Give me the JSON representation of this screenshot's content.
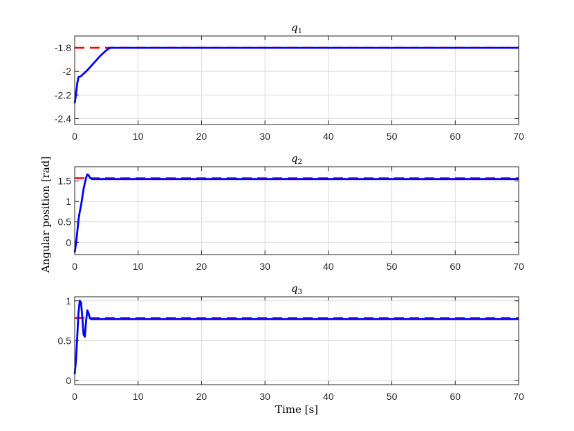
{
  "figure": {
    "ylabel": "Angular position [rad]",
    "xlabel": "Time [s]"
  },
  "chart_data": [
    {
      "type": "line",
      "title_main": "q",
      "title_sub": "1",
      "xlim": [
        0,
        70
      ],
      "ylim": [
        -2.45,
        -1.7
      ],
      "xticks": [
        "0",
        "10",
        "20",
        "30",
        "40",
        "50",
        "60",
        "70"
      ],
      "yticks": [
        {
          "value": -1.8,
          "label": "-1.8"
        },
        {
          "value": -2.0,
          "label": "-2"
        },
        {
          "value": -2.2,
          "label": "-2.2"
        },
        {
          "value": -2.4,
          "label": "-2.4"
        }
      ],
      "grid": true,
      "series": [
        {
          "style": "dashed",
          "color": "#ff0000",
          "x": [
            0,
            70
          ],
          "y": [
            -1.8,
            -1.8
          ]
        },
        {
          "style": "solid",
          "color": "#0000ff",
          "x": [
            0,
            0.2,
            0.4,
            0.6,
            1,
            2,
            3,
            4,
            5,
            5.6,
            10,
            20,
            30,
            40,
            50,
            60,
            70
          ],
          "y": [
            -2.27,
            -2.2,
            -2.1,
            -2.05,
            -2.04,
            -1.99,
            -1.93,
            -1.87,
            -1.82,
            -1.8,
            -1.8,
            -1.8,
            -1.8,
            -1.8,
            -1.8,
            -1.8,
            -1.8
          ]
        }
      ]
    },
    {
      "type": "line",
      "title_main": "q",
      "title_sub": "2",
      "xlim": [
        0,
        70
      ],
      "ylim": [
        -0.3,
        1.85
      ],
      "xticks": [
        "0",
        "10",
        "20",
        "30",
        "40",
        "50",
        "60",
        "70"
      ],
      "yticks": [
        {
          "value": 1.5,
          "label": "1.5"
        },
        {
          "value": 1.0,
          "label": "1"
        },
        {
          "value": 0.5,
          "label": "0.5"
        },
        {
          "value": 0.0,
          "label": "0"
        }
      ],
      "grid": true,
      "series": [
        {
          "style": "dashed",
          "color": "#ff0000",
          "x": [
            0,
            70
          ],
          "y": [
            1.57,
            1.57
          ]
        },
        {
          "style": "solid",
          "color": "#0000ff",
          "x": [
            0,
            0.2,
            0.4,
            0.6,
            0.8,
            1.0,
            1.2,
            1.4,
            1.6,
            1.8,
            2.0,
            2.2,
            2.4,
            2.7,
            3.0,
            10,
            20,
            30,
            40,
            50,
            60,
            70
          ],
          "y": [
            -0.25,
            -0.05,
            0.25,
            0.55,
            0.75,
            0.9,
            1.1,
            1.3,
            1.45,
            1.58,
            1.66,
            1.64,
            1.58,
            1.55,
            1.55,
            1.55,
            1.55,
            1.55,
            1.55,
            1.55,
            1.55,
            1.55
          ]
        }
      ]
    },
    {
      "type": "line",
      "title_main": "q",
      "title_sub": "3",
      "xlim": [
        0,
        70
      ],
      "ylim": [
        -0.05,
        1.05
      ],
      "xticks": [
        "0",
        "10",
        "20",
        "30",
        "40",
        "50",
        "60",
        "70"
      ],
      "yticks": [
        {
          "value": 1.0,
          "label": "1"
        },
        {
          "value": 0.5,
          "label": "0.5"
        },
        {
          "value": 0.0,
          "label": "0"
        }
      ],
      "grid": true,
      "series": [
        {
          "style": "dashed",
          "color": "#ff0000",
          "x": [
            0,
            70
          ],
          "y": [
            0.785,
            0.785
          ]
        },
        {
          "style": "solid",
          "color": "#0000ff",
          "x": [
            0,
            0.2,
            0.4,
            0.6,
            0.8,
            1.0,
            1.2,
            1.4,
            1.6,
            1.8,
            2.0,
            2.2,
            2.4,
            2.6,
            3.0,
            10,
            20,
            30,
            40,
            50,
            60,
            70
          ],
          "y": [
            0.08,
            0.25,
            0.55,
            0.85,
            1.0,
            0.98,
            0.8,
            0.58,
            0.55,
            0.75,
            0.88,
            0.84,
            0.78,
            0.77,
            0.77,
            0.77,
            0.77,
            0.77,
            0.77,
            0.77,
            0.77,
            0.77
          ]
        }
      ]
    }
  ]
}
